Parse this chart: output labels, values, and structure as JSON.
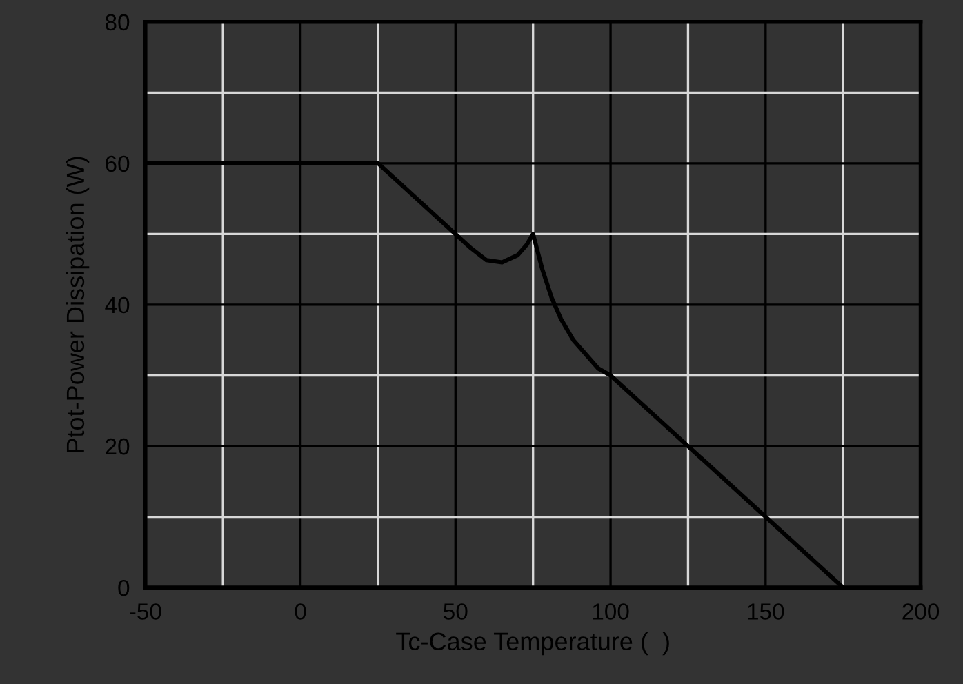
{
  "chart_data": {
    "type": "line",
    "xlabel": "Tc-Case Temperature (  )",
    "ylabel": "Ptot-Power Dissipation (W)",
    "x": [
      -50,
      25,
      50,
      55,
      60,
      65,
      70,
      73,
      75,
      78,
      81,
      84,
      88,
      92,
      96,
      100,
      175
    ],
    "series": [
      {
        "color": "#000000",
        "values": [
          60,
          60,
          50,
          48,
          46.3,
          46,
          47,
          48.5,
          50,
          45,
          41,
          38,
          35,
          33,
          31,
          30,
          0
        ]
      }
    ],
    "xlim": [
      -50,
      200
    ],
    "xticks": [
      -50,
      0,
      50,
      100,
      150,
      200
    ],
    "ylim": [
      0,
      80
    ],
    "yticks": [
      0,
      20,
      40,
      60,
      80
    ],
    "grid": true,
    "marker": "none",
    "line_style": "solid"
  }
}
